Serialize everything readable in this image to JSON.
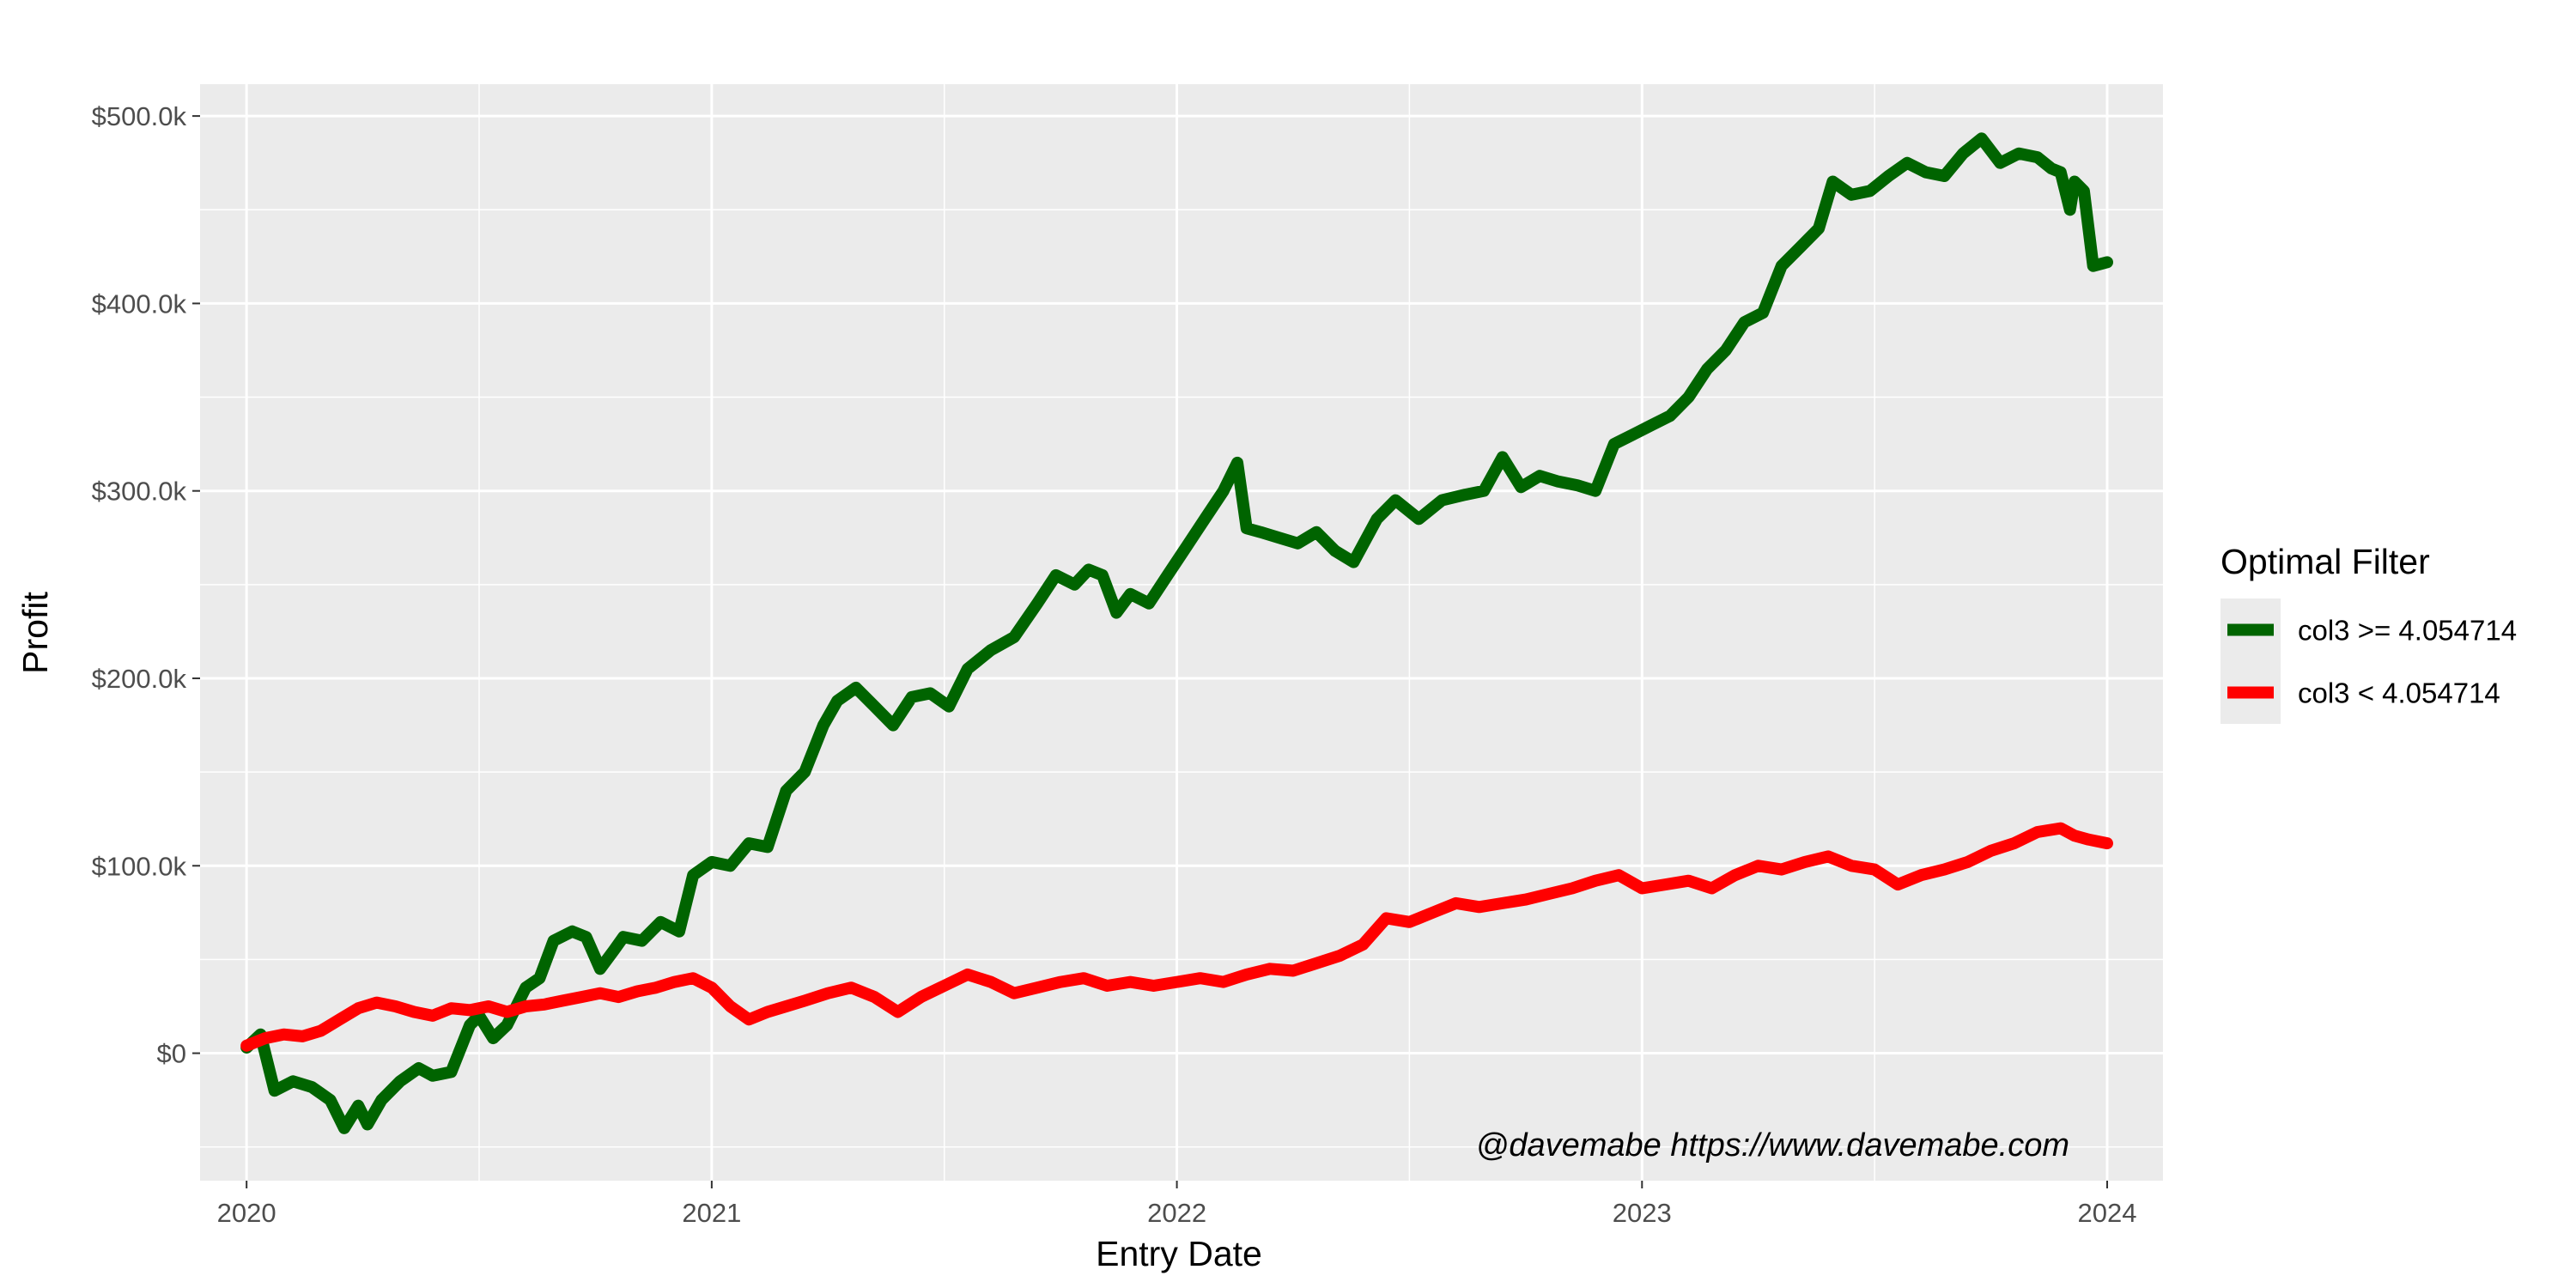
{
  "chart_data": {
    "type": "line",
    "xlabel": "Entry Date",
    "ylabel": "Profit",
    "xlim": [
      2019.9,
      2024.12
    ],
    "ylim": [
      -68000,
      517000
    ],
    "x_ticks": [
      2020,
      2021,
      2022,
      2023,
      2024
    ],
    "x_tick_labels": [
      "2020",
      "2021",
      "2022",
      "2023",
      "2024"
    ],
    "y_ticks": [
      0,
      100000,
      200000,
      300000,
      400000,
      500000
    ],
    "y_tick_labels": [
      "$0",
      "$100.0k",
      "$200.0k",
      "$300.0k",
      "$400.0k",
      "$500.0k"
    ],
    "grid": true,
    "background_color": "#ebebeb",
    "annotation": "@davemabe https://www.davemabe.com",
    "legend": {
      "title": "Optimal Filter",
      "position": "right"
    },
    "series": [
      {
        "name": "col3 >= 4.054714",
        "color": "#006400",
        "x": [
          2020.0,
          2020.03,
          2020.06,
          2020.1,
          2020.14,
          2020.18,
          2020.21,
          2020.24,
          2020.26,
          2020.29,
          2020.33,
          2020.37,
          2020.4,
          2020.44,
          2020.48,
          2020.5,
          2020.53,
          2020.56,
          2020.6,
          2020.63,
          2020.66,
          2020.7,
          2020.73,
          2020.76,
          2020.79,
          2020.81,
          2020.85,
          2020.89,
          2020.93,
          2020.96,
          2021.0,
          2021.04,
          2021.08,
          2021.12,
          2021.16,
          2021.2,
          2021.24,
          2021.27,
          2021.31,
          2021.35,
          2021.39,
          2021.43,
          2021.47,
          2021.51,
          2021.55,
          2021.6,
          2021.65,
          2021.7,
          2021.74,
          2021.78,
          2021.81,
          2021.84,
          2021.87,
          2021.9,
          2021.94,
          2021.98,
          2022.02,
          2022.06,
          2022.1,
          2022.13,
          2022.15,
          2022.18,
          2022.22,
          2022.26,
          2022.3,
          2022.34,
          2022.38,
          2022.43,
          2022.47,
          2022.52,
          2022.57,
          2022.62,
          2022.66,
          2022.7,
          2022.74,
          2022.78,
          2022.82,
          2022.86,
          2022.9,
          2022.94,
          2022.98,
          2023.02,
          2023.06,
          2023.1,
          2023.14,
          2023.18,
          2023.22,
          2023.26,
          2023.3,
          2023.34,
          2023.38,
          2023.41,
          2023.45,
          2023.49,
          2023.53,
          2023.57,
          2023.61,
          2023.65,
          2023.69,
          2023.73,
          2023.77,
          2023.81,
          2023.85,
          2023.88,
          2023.9,
          2023.92,
          2023.93,
          2023.95,
          2023.97,
          2024.0
        ],
        "y": [
          3000,
          10000,
          -20000,
          -15000,
          -18000,
          -25000,
          -40000,
          -28000,
          -38000,
          -25000,
          -15000,
          -8000,
          -12000,
          -10000,
          15000,
          20000,
          8000,
          15000,
          35000,
          40000,
          60000,
          65000,
          62000,
          45000,
          55000,
          62000,
          60000,
          70000,
          65000,
          95000,
          102000,
          100000,
          112000,
          110000,
          140000,
          150000,
          175000,
          188000,
          195000,
          185000,
          175000,
          190000,
          192000,
          185000,
          205000,
          215000,
          222000,
          240000,
          255000,
          250000,
          258000,
          255000,
          235000,
          245000,
          240000,
          255000,
          270000,
          285000,
          300000,
          315000,
          280000,
          278000,
          275000,
          272000,
          278000,
          268000,
          262000,
          285000,
          295000,
          285000,
          295000,
          298000,
          300000,
          318000,
          302000,
          308000,
          305000,
          303000,
          300000,
          325000,
          330000,
          335000,
          340000,
          350000,
          365000,
          375000,
          390000,
          395000,
          420000,
          430000,
          440000,
          465000,
          458000,
          460000,
          468000,
          475000,
          470000,
          468000,
          480000,
          488000,
          475000,
          480000,
          478000,
          472000,
          470000,
          450000,
          465000,
          460000,
          420000,
          422000
        ]
      },
      {
        "name": "col3 < 4.054714",
        "color": "#ff0000",
        "x": [
          2020.0,
          2020.04,
          2020.08,
          2020.12,
          2020.16,
          2020.2,
          2020.24,
          2020.28,
          2020.32,
          2020.36,
          2020.4,
          2020.44,
          2020.48,
          2020.52,
          2020.56,
          2020.6,
          2020.64,
          2020.68,
          2020.72,
          2020.76,
          2020.8,
          2020.84,
          2020.88,
          2020.92,
          2020.96,
          2021.0,
          2021.04,
          2021.08,
          2021.12,
          2021.16,
          2021.2,
          2021.25,
          2021.3,
          2021.35,
          2021.4,
          2021.45,
          2021.5,
          2021.55,
          2021.6,
          2021.65,
          2021.7,
          2021.75,
          2021.8,
          2021.85,
          2021.9,
          2021.95,
          2022.0,
          2022.05,
          2022.1,
          2022.15,
          2022.2,
          2022.25,
          2022.3,
          2022.35,
          2022.4,
          2022.45,
          2022.5,
          2022.55,
          2022.6,
          2022.65,
          2022.7,
          2022.75,
          2022.8,
          2022.85,
          2022.9,
          2022.95,
          2023.0,
          2023.05,
          2023.1,
          2023.15,
          2023.2,
          2023.25,
          2023.3,
          2023.35,
          2023.4,
          2023.45,
          2023.5,
          2023.55,
          2023.6,
          2023.65,
          2023.7,
          2023.75,
          2023.8,
          2023.85,
          2023.9,
          2023.93,
          2023.96,
          2024.0
        ],
        "y": [
          4000,
          8000,
          10000,
          9000,
          12000,
          18000,
          24000,
          27000,
          25000,
          22000,
          20000,
          24000,
          23000,
          25000,
          22000,
          25000,
          26000,
          28000,
          30000,
          32000,
          30000,
          33000,
          35000,
          38000,
          40000,
          35000,
          25000,
          18000,
          22000,
          25000,
          28000,
          32000,
          35000,
          30000,
          22000,
          30000,
          36000,
          42000,
          38000,
          32000,
          35000,
          38000,
          40000,
          36000,
          38000,
          36000,
          38000,
          40000,
          38000,
          42000,
          45000,
          44000,
          48000,
          52000,
          58000,
          72000,
          70000,
          75000,
          80000,
          78000,
          80000,
          82000,
          85000,
          88000,
          92000,
          95000,
          88000,
          90000,
          92000,
          88000,
          95000,
          100000,
          98000,
          102000,
          105000,
          100000,
          98000,
          90000,
          95000,
          98000,
          102000,
          108000,
          112000,
          118000,
          120000,
          116000,
          114000,
          112000
        ]
      }
    ]
  }
}
